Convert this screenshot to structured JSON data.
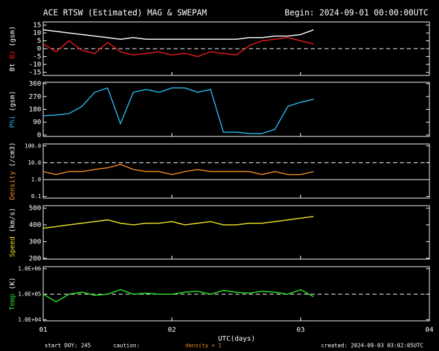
{
  "title": "ACE RTSW (Estimated) MAG & SWEPAM",
  "begin": "Begin: 2024-09-01 00:00:00UTC",
  "xlabel": "UTC(days)",
  "footer": {
    "start": "start DOY: 245",
    "caution": "caution:",
    "density_note": "density < 1",
    "created": "created: 2024-09-03 03:02:05UTC"
  },
  "xlim": [
    1,
    4
  ],
  "xticks": [
    {
      "value": 1,
      "label": "01"
    },
    {
      "value": 2,
      "label": "02"
    },
    {
      "value": 3,
      "label": "03"
    },
    {
      "value": 4,
      "label": "04"
    }
  ],
  "chart_data": [
    {
      "type": "scatter",
      "y_label": "(gsm)",
      "ylim": [
        -17,
        17
      ],
      "yticks": [
        -15,
        -10,
        -5,
        0,
        5,
        10,
        15
      ],
      "hlines": [
        {
          "value": 0,
          "style": "dashed"
        }
      ],
      "x": [
        1.0,
        1.1,
        1.2,
        1.3,
        1.4,
        1.5,
        1.6,
        1.7,
        1.8,
        1.9,
        2.0,
        2.1,
        2.2,
        2.3,
        2.4,
        2.5,
        2.6,
        2.7,
        2.8,
        2.9,
        3.0,
        3.1
      ],
      "series": [
        {
          "name": "Bt",
          "color": "#ffffff",
          "values": [
            12,
            11,
            10,
            9,
            8,
            7,
            6,
            7,
            6,
            6,
            6,
            6,
            6,
            6,
            6,
            6,
            7,
            7,
            8,
            8,
            9,
            12
          ]
        },
        {
          "name": "Bz",
          "color": "#e8181c",
          "values": [
            3,
            -2,
            5,
            -1,
            -3,
            4,
            -2,
            -4,
            -3,
            -2,
            -4,
            -3,
            -5,
            -2,
            -3,
            -4,
            2,
            5,
            6,
            7,
            5,
            3
          ]
        }
      ]
    },
    {
      "type": "scatter",
      "y_label": "(gsm)",
      "ylim": [
        -10,
        370
      ],
      "yticks": [
        0,
        90,
        180,
        270,
        360
      ],
      "hlines": [],
      "x": [
        1.0,
        1.1,
        1.2,
        1.3,
        1.4,
        1.5,
        1.6,
        1.7,
        1.8,
        1.9,
        2.0,
        2.1,
        2.2,
        2.3,
        2.4,
        2.5,
        2.6,
        2.7,
        2.8,
        2.9,
        3.0,
        3.1
      ],
      "series": [
        {
          "name": "Phi",
          "color": "#29b6e8",
          "values": [
            135,
            140,
            150,
            200,
            300,
            330,
            80,
            300,
            320,
            300,
            330,
            330,
            300,
            320,
            20,
            20,
            10,
            10,
            40,
            200,
            230,
            250
          ]
        }
      ]
    },
    {
      "type": "scatter",
      "y_label": "(/cm3)",
      "log": true,
      "ylim": [
        0.08,
        130
      ],
      "yticks": [
        {
          "value": 0.1,
          "label": "0.1"
        },
        {
          "value": 1,
          "label": "1.0"
        },
        {
          "value": 10,
          "label": "10.0"
        },
        {
          "value": 100,
          "label": "100.0"
        }
      ],
      "hlines": [
        {
          "value": 1,
          "style": "solid"
        },
        {
          "value": 10,
          "style": "dashed"
        }
      ],
      "x": [
        1.0,
        1.1,
        1.2,
        1.3,
        1.4,
        1.5,
        1.6,
        1.7,
        1.8,
        1.9,
        2.0,
        2.1,
        2.2,
        2.3,
        2.4,
        2.5,
        2.6,
        2.7,
        2.8,
        2.9,
        3.0,
        3.1
      ],
      "series": [
        {
          "name": "Density",
          "color": "#f08a24",
          "values": [
            3,
            2,
            3,
            3,
            4,
            5,
            8,
            4,
            3,
            3,
            2,
            3,
            4,
            3,
            3,
            3,
            3,
            2,
            3,
            2,
            2,
            3
          ]
        }
      ]
    },
    {
      "type": "scatter",
      "y_label": "(km/s)",
      "ylim": [
        195,
        515
      ],
      "yticks": [
        200,
        300,
        400,
        500
      ],
      "hlines": [],
      "x": [
        1.0,
        1.1,
        1.2,
        1.3,
        1.4,
        1.5,
        1.6,
        1.7,
        1.8,
        1.9,
        2.0,
        2.1,
        2.2,
        2.3,
        2.4,
        2.5,
        2.6,
        2.7,
        2.8,
        2.9,
        3.0,
        3.1
      ],
      "series": [
        {
          "name": "Speed",
          "color": "#f0e020",
          "values": [
            380,
            390,
            400,
            410,
            420,
            430,
            410,
            400,
            410,
            410,
            420,
            400,
            410,
            420,
            400,
            400,
            410,
            410,
            420,
            430,
            440,
            450
          ]
        }
      ]
    },
    {
      "type": "scatter",
      "y_label": "(K)",
      "log": true,
      "ylim": [
        9000,
        1200000
      ],
      "yticks": [
        {
          "value": 10000,
          "label": "1.0E+04"
        },
        {
          "value": 100000,
          "label": "1.0E+05"
        },
        {
          "value": 1000000,
          "label": "1.0E+06"
        }
      ],
      "hlines": [
        {
          "value": 100000,
          "style": "dashed"
        }
      ],
      "x": [
        1.0,
        1.1,
        1.2,
        1.3,
        1.4,
        1.5,
        1.6,
        1.7,
        1.8,
        1.9,
        2.0,
        2.1,
        2.2,
        2.3,
        2.4,
        2.5,
        2.6,
        2.7,
        2.8,
        2.9,
        3.0,
        3.1
      ],
      "series": [
        {
          "name": "Temp",
          "color": "#2ee02e",
          "values": [
            100000,
            50000,
            100000,
            120000,
            90000,
            100000,
            150000,
            100000,
            110000,
            100000,
            100000,
            120000,
            130000,
            100000,
            140000,
            120000,
            110000,
            130000,
            120000,
            100000,
            150000,
            80000
          ]
        }
      ]
    }
  ]
}
